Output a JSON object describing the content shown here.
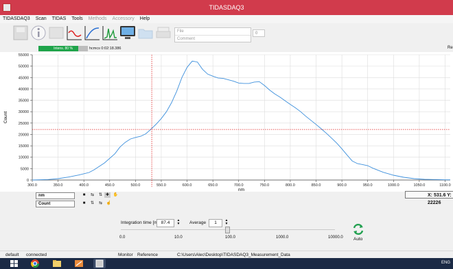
{
  "window": {
    "title": "TIDASDAQ3"
  },
  "menu": [
    "TIDASDAQ3",
    "Scan",
    "TIDAS",
    "Tools",
    "Methods",
    "Accessory",
    "Help"
  ],
  "toolbar": {
    "icons": [
      "save-icon",
      "info-icon",
      "grid-icon",
      "spectrum-red-icon",
      "spectrum-line-icon",
      "spectrum-green-icon",
      "monitor-icon",
      "folder-icon",
      "print-icon"
    ],
    "file_placeholder": "File",
    "comment_placeholder": "Comment",
    "count": "0"
  },
  "acq": {
    "progress_label": "Intens. 80 %",
    "progress_value": 0.8,
    "time": "hcmcs 0:02:18.386",
    "right_label": "Re"
  },
  "chart_data": {
    "type": "line",
    "xlabel": "nm",
    "ylabel": "Count",
    "xlim": [
      300,
      1110
    ],
    "ylim": [
      0,
      55000
    ],
    "x_ticks": [
      "300.0",
      "350.0",
      "400.0",
      "450.0",
      "500.0",
      "550.0",
      "600.0",
      "650.0",
      "700.0",
      "750.0",
      "800.0",
      "850.0",
      "900.0",
      "950.0",
      "1000.0",
      "1050.0",
      "1100.0"
    ],
    "y_ticks": [
      "0",
      "5000",
      "10000",
      "15000",
      "20000",
      "25000",
      "30000",
      "35000",
      "40000",
      "45000",
      "50000",
      "55000"
    ],
    "grid": true,
    "line_color": "#3c8fdc",
    "cursor": {
      "x": 531.6,
      "y": 22200,
      "color": "#e02020"
    },
    "series": [
      {
        "x": [
          300,
          330,
          350,
          370,
          390,
          410,
          420,
          440,
          460,
          470,
          480,
          490,
          500,
          510,
          520,
          530,
          540,
          550,
          560,
          570,
          580,
          590,
          600,
          610,
          620,
          630,
          640,
          650,
          660,
          670,
          680,
          690,
          700,
          710,
          720,
          730,
          740,
          750,
          760,
          770,
          780,
          790,
          800,
          810,
          820,
          830,
          840,
          850,
          860,
          870,
          880,
          890,
          900,
          910,
          920,
          930,
          940,
          950,
          960,
          980,
          1000,
          1020,
          1040,
          1060,
          1080,
          1100,
          1110
        ],
        "y": [
          0,
          200,
          600,
          1300,
          2200,
          3300,
          4500,
          7500,
          11500,
          14500,
          16500,
          18000,
          18700,
          19200,
          20300,
          22300,
          24500,
          27000,
          30000,
          34000,
          39000,
          45000,
          49500,
          52200,
          51800,
          48600,
          46500,
          45600,
          44800,
          44600,
          44000,
          43400,
          42600,
          42400,
          42400,
          43000,
          43200,
          41500,
          39500,
          37800,
          36400,
          34800,
          33200,
          31700,
          30000,
          28000,
          26200,
          24400,
          22500,
          20500,
          18400,
          16200,
          13700,
          11000,
          8400,
          7200,
          6800,
          6300,
          5200,
          3400,
          2100,
          1200,
          600,
          300,
          200,
          100,
          100
        ]
      }
    ],
    "coord_readout": "X: 531.6 Y: 22226"
  },
  "axis_panels": {
    "x_unit": "nm",
    "y_unit": "Count"
  },
  "controls": {
    "integration_label": "Integration time [ms]",
    "integration_value": "87.4",
    "average_label": "Average",
    "average_value": "1",
    "slider_labels": [
      "0.0",
      "10.0",
      "100.0",
      "1000.0",
      "10000.0"
    ],
    "auto_label": "Auto"
  },
  "status": {
    "default": "default",
    "connection": "connected",
    "monitor": "Monitor",
    "reference": "Reference",
    "path": "C:\\Users\\Alec\\Desktop\\TIDASDAQ3_Measurement_Data"
  },
  "taskbar": {
    "tray": "ENG"
  }
}
